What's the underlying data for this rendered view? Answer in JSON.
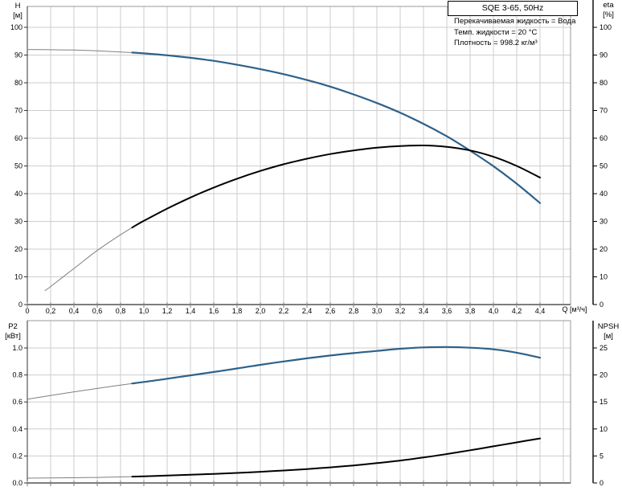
{
  "header": {
    "title": "SQE 3-65, 50Hz",
    "info_lines": [
      "Перекачиваемая жидкость = Вода",
      "Темп. жидкости = 20 °C",
      "Плотность = 998.2 кг/м³"
    ]
  },
  "colors": {
    "curve_blue": "#2e6189",
    "curve_black": "#000000",
    "thin_line": "#808080",
    "grid": "#cdcdcd",
    "frame": "#9a9a9a",
    "left_axis": "#333333",
    "right_axis": "#000000"
  },
  "chart_data": [
    {
      "type": "line",
      "name": "head-efficiency-chart",
      "x_axis": {
        "label": "Q [м³/ч]",
        "tick_values": [
          0,
          0.2,
          0.4,
          0.6,
          0.8,
          1.0,
          1.2,
          1.4,
          1.6,
          1.8,
          2.0,
          2.2,
          2.4,
          2.6,
          2.8,
          3.0,
          3.2,
          3.4,
          3.6,
          3.8,
          4.0,
          4.2,
          4.4
        ],
        "tick_labels": [
          "0",
          "0,2",
          "0,4",
          "0,6",
          "0,8",
          "1,0",
          "1,2",
          "1,4",
          "1,6",
          "1,8",
          "2,0",
          "2,2",
          "2,4",
          "2,6",
          "2,8",
          "3,0",
          "3,2",
          "3,4",
          "3,6",
          "3,8",
          "4,0",
          "4,2",
          "4,4"
        ],
        "min": 0,
        "max": 4.66,
        "grid_step": 0.2,
        "grid_max": 4.6,
        "show_labels": true
      },
      "left_axis": {
        "label_lines": [
          "H",
          "[м]"
        ],
        "tick_values": [
          100,
          90,
          80,
          70,
          60,
          50,
          40,
          30,
          20,
          10,
          0
        ],
        "tick_labels": [
          "100",
          "90",
          "80",
          "70",
          "60",
          "50",
          "40",
          "30",
          "20",
          "10",
          "0"
        ],
        "min": 0,
        "max": 107.5
      },
      "right_axis": {
        "label_lines": [
          "eta",
          "[%]"
        ],
        "tick_values": [
          100,
          90,
          80,
          70,
          60,
          50,
          40,
          30,
          20,
          10,
          0
        ],
        "tick_labels": [
          "100",
          "90",
          "80",
          "70",
          "60",
          "50",
          "40",
          "30",
          "20",
          "10",
          "0"
        ],
        "min": 0,
        "max": 107.5
      },
      "grid": true,
      "series": [
        {
          "name": "H",
          "axis": "left",
          "color": "#2e6189",
          "width": 2.2,
          "thin_until": 0.9,
          "x": [
            0,
            0.2,
            0.4,
            0.6,
            0.8,
            0.9,
            1.0,
            1.2,
            1.4,
            1.6,
            1.8,
            2.0,
            2.2,
            2.4,
            2.6,
            2.8,
            3.0,
            3.2,
            3.4,
            3.6,
            3.8,
            4.0,
            4.2,
            4.4
          ],
          "y": [
            92.0,
            91.9,
            91.8,
            91.5,
            91.1,
            90.9,
            90.6,
            89.9,
            89.0,
            87.9,
            86.5,
            84.9,
            83.1,
            81.0,
            78.6,
            75.8,
            72.7,
            69.2,
            65.2,
            60.7,
            55.5,
            49.9,
            43.6,
            36.6
          ]
        },
        {
          "name": "eta",
          "axis": "right",
          "color": "#000000",
          "width": 2.0,
          "thin_until": 0.9,
          "x": [
            0.15,
            0.2,
            0.4,
            0.6,
            0.8,
            0.9,
            1.0,
            1.2,
            1.4,
            1.6,
            1.8,
            2.0,
            2.2,
            2.4,
            2.6,
            2.8,
            3.0,
            3.2,
            3.4,
            3.6,
            3.8,
            4.0,
            4.2,
            4.4
          ],
          "y": [
            5.0,
            6.5,
            13.0,
            19.5,
            25.2,
            27.8,
            30.2,
            34.6,
            38.6,
            42.2,
            45.4,
            48.2,
            50.6,
            52.6,
            54.3,
            55.6,
            56.6,
            57.2,
            57.4,
            56.9,
            55.6,
            53.3,
            50.0,
            45.8
          ]
        }
      ]
    },
    {
      "type": "line",
      "name": "power-npsh-chart",
      "x_axis": {
        "label": "",
        "tick_values": [
          0,
          0.2,
          0.4,
          0.6,
          0.8,
          1.0,
          1.2,
          1.4,
          1.6,
          1.8,
          2.0,
          2.2,
          2.4,
          2.6,
          2.8,
          3.0,
          3.2,
          3.4,
          3.6,
          3.8,
          4.0,
          4.2,
          4.4
        ],
        "tick_labels": [],
        "min": 0,
        "max": 4.66,
        "grid_step": 0.2,
        "grid_max": 4.6,
        "show_labels": false
      },
      "left_axis": {
        "label_lines": [
          "P2",
          "[кВт]"
        ],
        "tick_values": [
          1.0,
          0.8,
          0.6,
          0.4,
          0.2,
          0.0
        ],
        "tick_labels": [
          "1.0",
          "0.8",
          "0.6",
          "0.4",
          "0.2",
          "0.0"
        ],
        "min": 0,
        "max": 1.2
      },
      "right_axis": {
        "label_lines": [
          "NPSH",
          "[м]"
        ],
        "tick_values": [
          25,
          20,
          15,
          10,
          5,
          0
        ],
        "tick_labels": [
          "25",
          "20",
          "15",
          "10",
          "5",
          "0"
        ],
        "min": 0,
        "max": 30
      },
      "grid": true,
      "series": [
        {
          "name": "P2",
          "axis": "left",
          "color": "#2e6189",
          "width": 2.2,
          "thin_until": 0.9,
          "x": [
            0,
            0.2,
            0.4,
            0.6,
            0.8,
            0.9,
            1.0,
            1.2,
            1.4,
            1.6,
            1.8,
            2.0,
            2.2,
            2.4,
            2.6,
            2.8,
            3.0,
            3.2,
            3.4,
            3.6,
            3.8,
            4.0,
            4.2,
            4.4
          ],
          "y": [
            0.62,
            0.648,
            0.675,
            0.7,
            0.725,
            0.737,
            0.748,
            0.772,
            0.797,
            0.822,
            0.848,
            0.875,
            0.9,
            0.923,
            0.944,
            0.962,
            0.978,
            0.994,
            1.004,
            1.007,
            1.002,
            0.99,
            0.965,
            0.928
          ]
        },
        {
          "name": "NPSH",
          "axis": "right",
          "color": "#000000",
          "width": 2.0,
          "thin_until": 0.9,
          "x": [
            0,
            0.2,
            0.4,
            0.6,
            0.8,
            0.9,
            1.0,
            1.2,
            1.4,
            1.6,
            1.8,
            2.0,
            2.2,
            2.4,
            2.6,
            2.8,
            3.0,
            3.2,
            3.4,
            3.6,
            3.8,
            4.0,
            4.2,
            4.4
          ],
          "y": [
            0.9,
            0.93,
            0.97,
            1.03,
            1.12,
            1.18,
            1.24,
            1.37,
            1.52,
            1.68,
            1.86,
            2.07,
            2.31,
            2.58,
            2.89,
            3.25,
            3.67,
            4.15,
            4.71,
            5.36,
            6.05,
            6.78,
            7.52,
            8.25
          ]
        }
      ]
    }
  ]
}
